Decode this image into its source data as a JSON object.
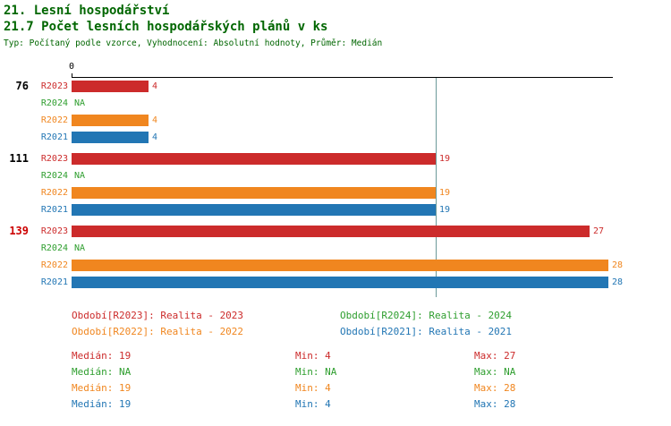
{
  "colors": {
    "title": "#006600",
    "axis": "#000000",
    "median_line": "#6B9999",
    "total": "#000000",
    "total_highlight": "#CC0000",
    "series": {
      "R2023": "#CC2B2B",
      "R2024": "#2E9E2E",
      "R2022": "#F0861F",
      "R2021": "#2276B4"
    }
  },
  "header": {
    "title_line1": "21. Lesní hospodářství",
    "title_line2": "21.7 Počet lesních hospodářských plánů v ks",
    "subtitle": "Typ: Počítaný podle vzorce, Vyhodnocení: Absolutní hodnoty, Průměr: Medián"
  },
  "chart_data": {
    "type": "bar",
    "orientation": "horizontal",
    "title": "21.7 Počet lesních hospodářských plánů v ks",
    "x_origin_label": "0",
    "xlim": [
      0,
      28
    ],
    "median_value": 19,
    "grid": false,
    "legend_position": "bottom",
    "series_order": [
      "R2023",
      "R2024",
      "R2022",
      "R2021"
    ],
    "groups": [
      {
        "total": "76",
        "total_highlight": false,
        "bars": [
          {
            "series": "R2023",
            "value": 4,
            "label": "4"
          },
          {
            "series": "R2024",
            "value": null,
            "label": "NA"
          },
          {
            "series": "R2022",
            "value": 4,
            "label": "4"
          },
          {
            "series": "R2021",
            "value": 4,
            "label": "4"
          }
        ]
      },
      {
        "total": "111",
        "total_highlight": false,
        "bars": [
          {
            "series": "R2023",
            "value": 19,
            "label": "19"
          },
          {
            "series": "R2024",
            "value": null,
            "label": "NA"
          },
          {
            "series": "R2022",
            "value": 19,
            "label": "19"
          },
          {
            "series": "R2021",
            "value": 19,
            "label": "19"
          }
        ]
      },
      {
        "total": "139",
        "total_highlight": true,
        "bars": [
          {
            "series": "R2023",
            "value": 27,
            "label": "27"
          },
          {
            "series": "R2024",
            "value": null,
            "label": "NA"
          },
          {
            "series": "R2022",
            "value": 28,
            "label": "28"
          },
          {
            "series": "R2021",
            "value": 28,
            "label": "28"
          }
        ]
      }
    ]
  },
  "legend": {
    "items": [
      {
        "series": "R2023",
        "text": "Období[R2023]: Realita - 2023"
      },
      {
        "series": "R2024",
        "text": "Období[R2024]: Realita - 2024"
      },
      {
        "series": "R2022",
        "text": "Období[R2022]: Realita - 2022"
      },
      {
        "series": "R2021",
        "text": "Období[R2021]: Realita - 2021"
      }
    ]
  },
  "stats": {
    "rows": [
      {
        "series": "R2023",
        "median": "Medián: 19",
        "min": "Min: 4",
        "max": "Max: 27"
      },
      {
        "series": "R2024",
        "median": "Medián: NA",
        "min": "Min: NA",
        "max": "Max: NA"
      },
      {
        "series": "R2022",
        "median": "Medián: 19",
        "min": "Min: 4",
        "max": "Max: 28"
      },
      {
        "series": "R2021",
        "median": "Medián: 19",
        "min": "Min: 4",
        "max": "Max: 28"
      }
    ]
  }
}
